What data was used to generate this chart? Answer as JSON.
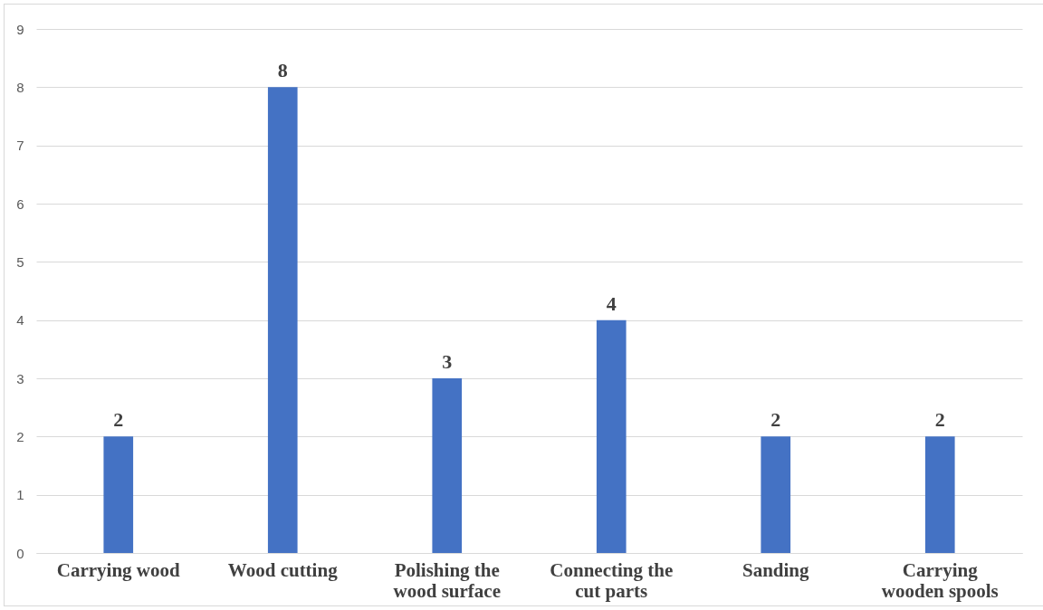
{
  "chart_data": {
    "type": "bar",
    "categories": [
      "Carrying wood",
      "Wood cutting",
      "Polishing the wood surface",
      "Connecting the cut parts",
      "Sanding",
      "Carrying wooden spools"
    ],
    "values": [
      2,
      8,
      3,
      4,
      2,
      2
    ],
    "color": "#4472c4",
    "ylim": [
      0,
      9
    ],
    "yticks": [
      0,
      1,
      2,
      3,
      4,
      5,
      6,
      7,
      8,
      9
    ],
    "grid": "y",
    "data_labels": true
  }
}
